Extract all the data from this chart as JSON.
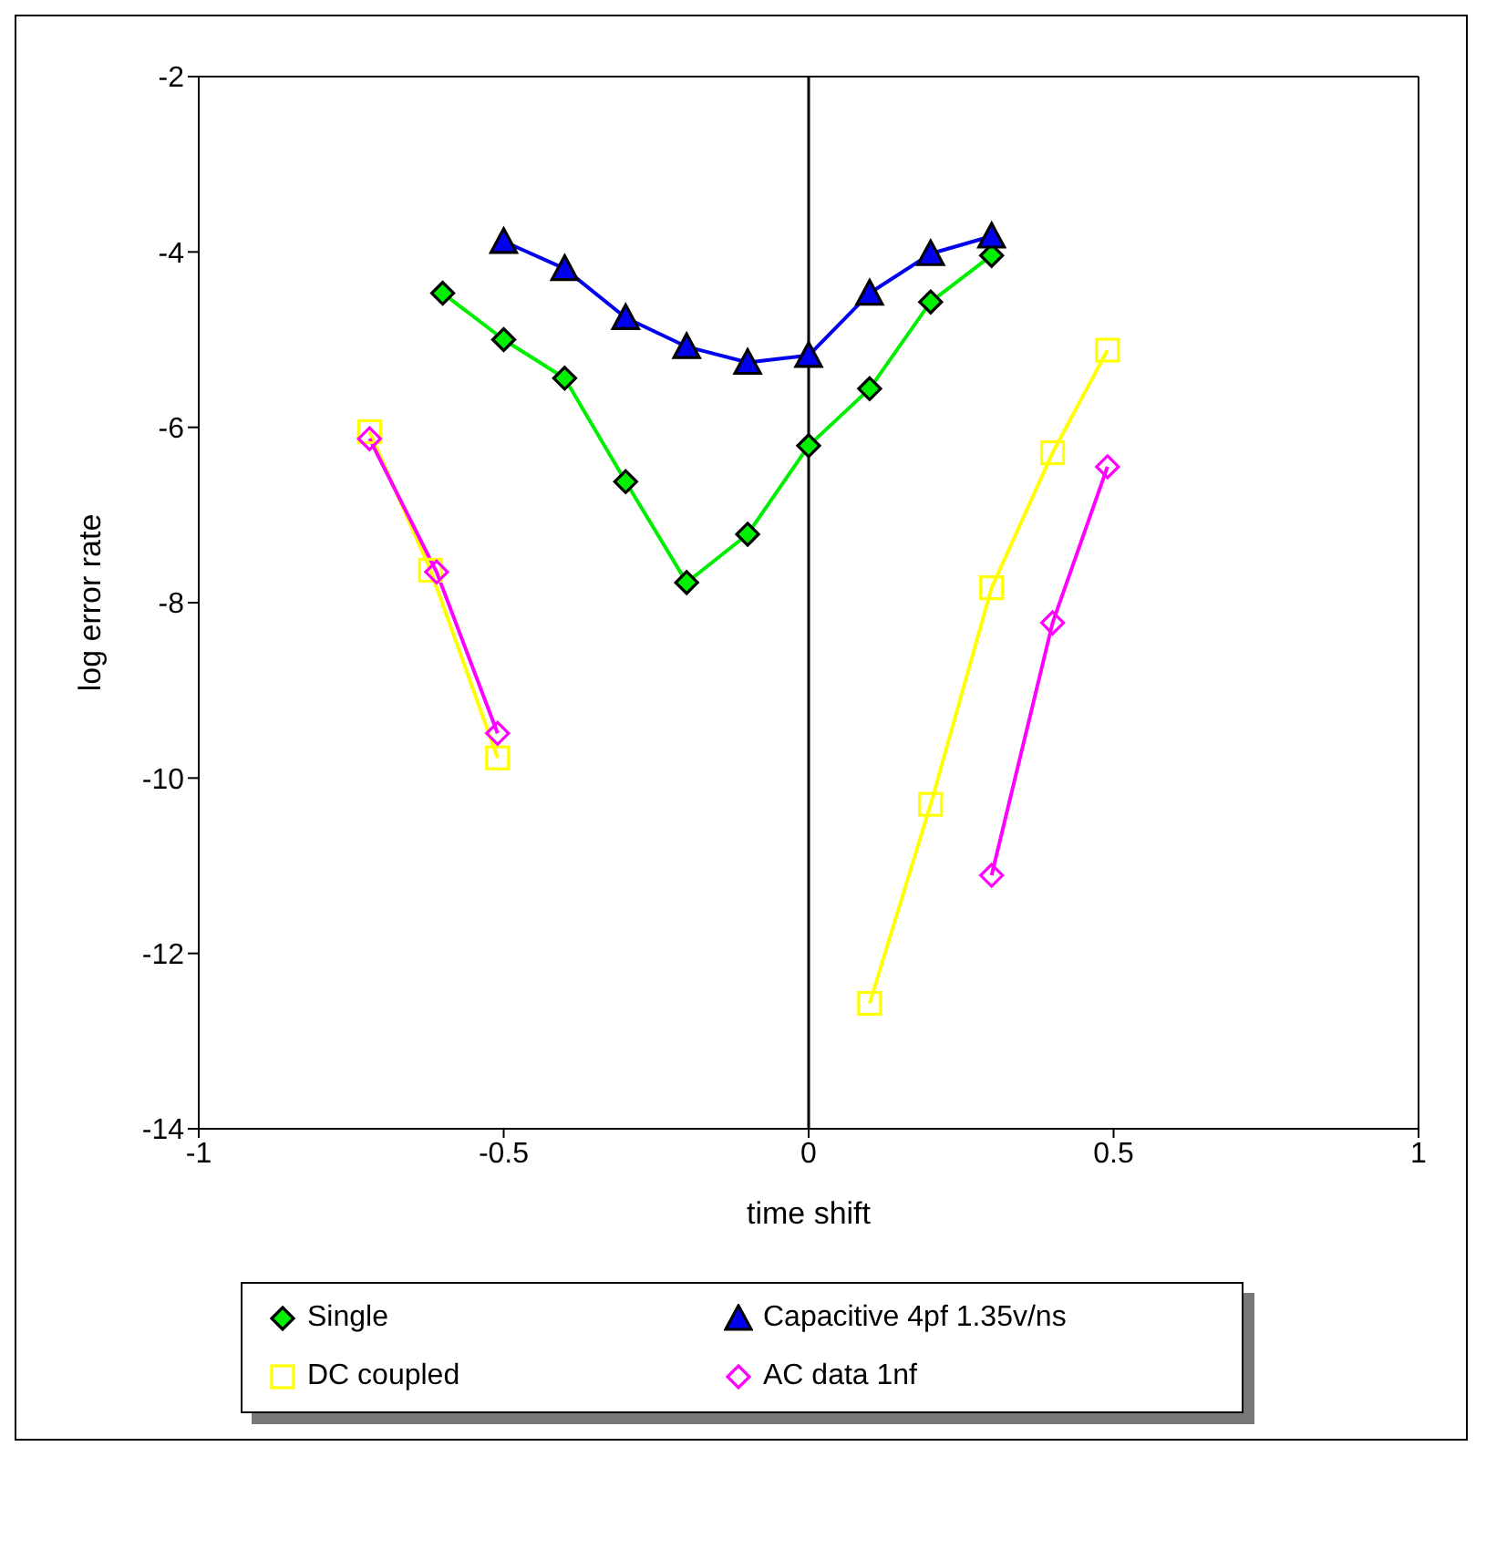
{
  "chart_data": {
    "type": "line",
    "xlabel": "time shift",
    "ylabel": "log error rate",
    "xlim": [
      -1,
      1
    ],
    "xticks": [
      -1,
      -0.5,
      0,
      0.5,
      1
    ],
    "ylim": [
      -14,
      -2
    ],
    "yticks": [
      -14,
      -12,
      -10,
      -8,
      -6,
      -4,
      -2
    ],
    "grid": false,
    "legend": "bottom",
    "ref_lines": [
      {
        "axis": "x",
        "value": 0,
        "color": "#000000"
      }
    ],
    "series": [
      {
        "name": "Single",
        "color": "#00ee00",
        "marker": "diamond",
        "x": [
          -0.6,
          -0.5,
          -0.4,
          -0.3,
          -0.2,
          -0.1,
          0,
          0.1,
          0.2,
          0.3
        ],
        "values": [
          -4.47,
          -5.0,
          -5.44,
          -6.62,
          -7.77,
          -7.22,
          -6.21,
          -5.56,
          -4.57,
          -4.04
        ]
      },
      {
        "name": "Capacitive 4pf 1.35v/ns",
        "color": "#0000ee",
        "marker": "triangle",
        "x": [
          -0.5,
          -0.4,
          -0.3,
          -0.2,
          -0.1,
          0,
          0.1,
          0.2,
          0.3
        ],
        "values": [
          -3.88,
          -4.19,
          -4.75,
          -5.08,
          -5.26,
          -5.18,
          -4.47,
          -4.02,
          -3.82
        ]
      },
      {
        "name": "DC coupled",
        "color": "#ffff00",
        "marker": "square-open",
        "x": [
          -0.72,
          -0.62,
          -0.51,
          0,
          0.1,
          0.2,
          0.3,
          0.4,
          0.49
        ],
        "values": [
          -6.05,
          -7.63,
          -9.77,
          null,
          -12.57,
          -10.3,
          -7.83,
          -6.29,
          -5.12
        ]
      },
      {
        "name": "AC data 1nf",
        "color": "#ff00ff",
        "marker": "diamond-open",
        "x": [
          -0.72,
          -0.61,
          -0.51,
          0,
          0.3,
          0.4,
          0.49
        ],
        "values": [
          -6.13,
          -7.65,
          -9.49,
          null,
          -11.11,
          -8.23,
          -6.45
        ]
      }
    ]
  }
}
